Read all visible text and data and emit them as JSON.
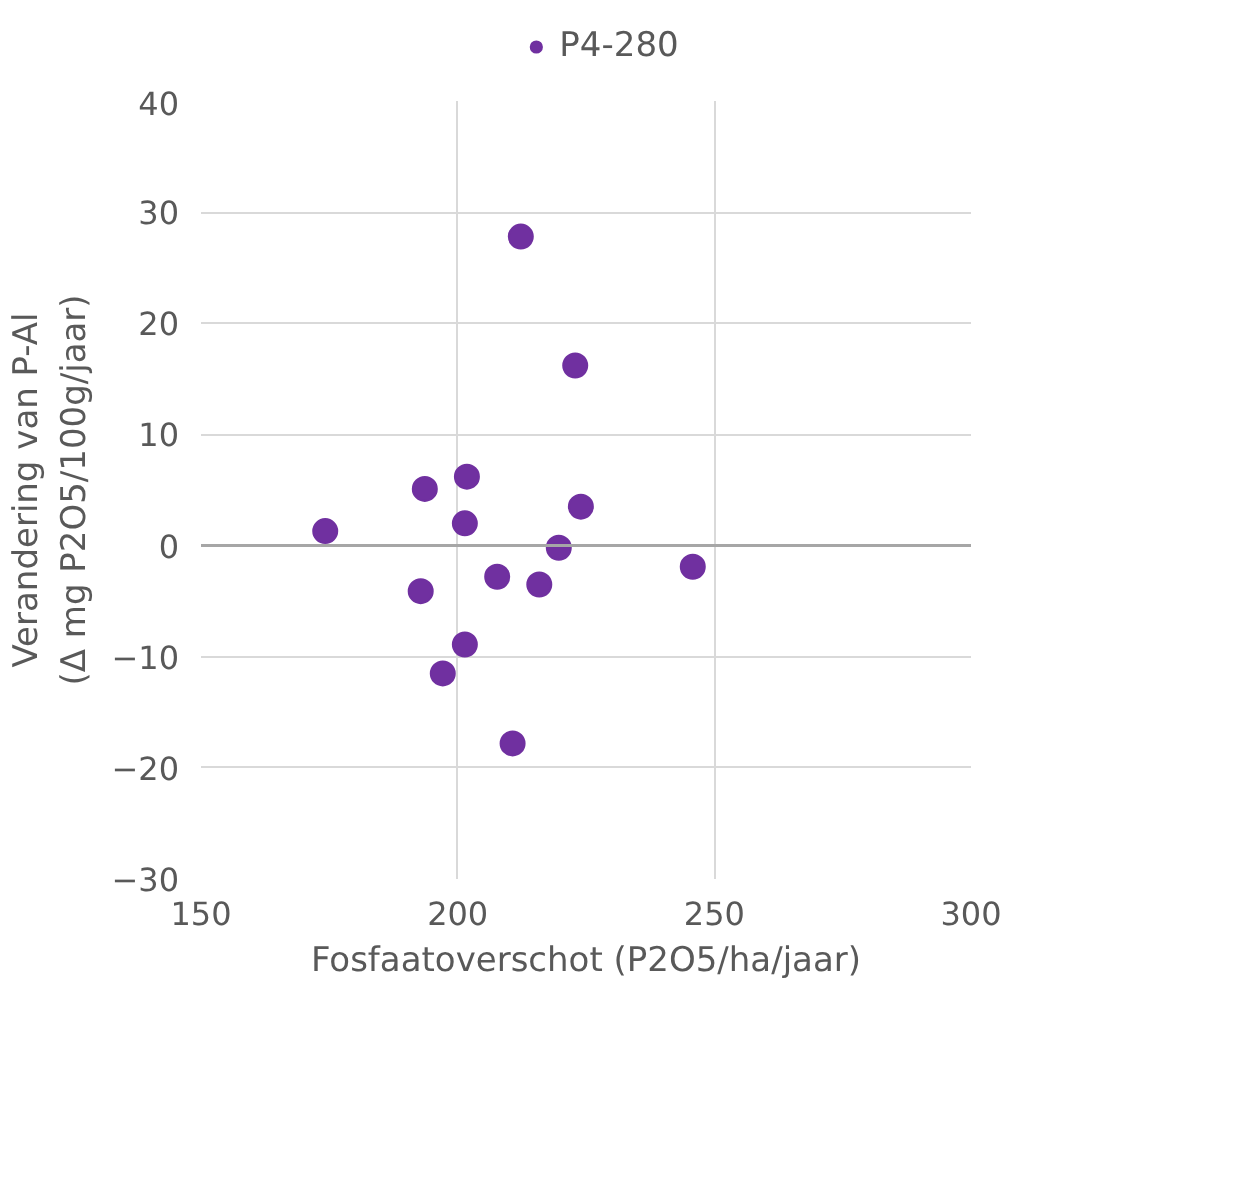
{
  "chart_data": {
    "type": "scatter",
    "xlabel": "Fosfaatoverschot (P2O5/ha/jaar)",
    "ylabel": "Verandering van P-Al\n(Δ mg P2O5/100g/jaar)",
    "series": [
      {
        "name": "P4-280",
        "color": "#7030a0",
        "x": [
          212.3,
          222.9,
          174.2,
          193.6,
          201.8,
          201.4,
          224.0,
          219.7,
          245.8,
          207.7,
          215.9,
          192.8,
          201.4,
          197.1,
          210.7
        ],
        "values": [
          27.8,
          16.2,
          1.3,
          5.1,
          6.2,
          2.0,
          3.5,
          -0.2,
          -1.9,
          -2.8,
          -3.5,
          -4.1,
          -8.9,
          -11.5,
          -17.8
        ]
      }
    ],
    "xlim": [
      150,
      300
    ],
    "xticks": [
      150,
      200,
      250,
      300
    ],
    "ylim": [
      -30,
      40
    ],
    "yticks": [
      -30,
      -20,
      -10,
      0,
      10,
      20,
      30,
      40
    ],
    "ref_lines": [
      {
        "axis": "y",
        "value": 0,
        "color": "#a6a6a6"
      }
    ],
    "grid": true,
    "legend": "top",
    "marker": "circle"
  }
}
